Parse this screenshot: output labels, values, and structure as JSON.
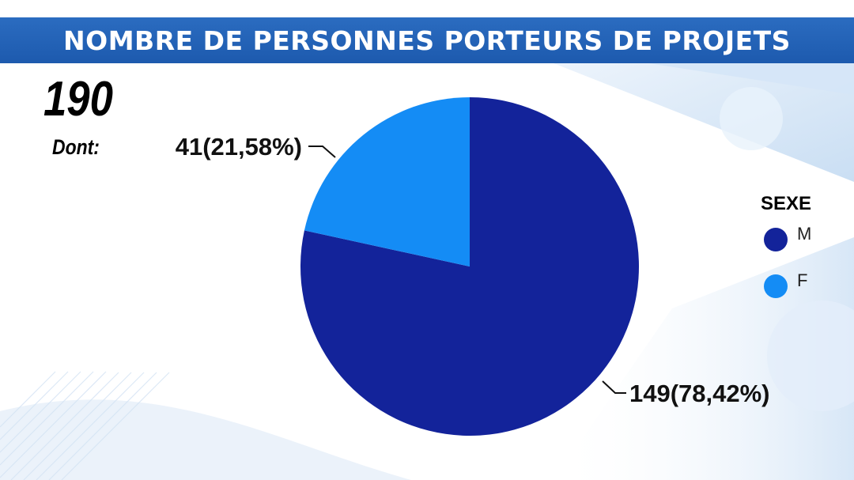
{
  "header": {
    "title": "NOMBRE DE PERSONNES PORTEURS DE PROJETS"
  },
  "summary": {
    "total": "190",
    "dont_label": "Dont:"
  },
  "colors": {
    "title_bar": "#1d5aae",
    "male": "#13239a",
    "female": "#148cf5"
  },
  "legend": {
    "title": "SEXE",
    "items": [
      {
        "label": "M",
        "color": "#13239a"
      },
      {
        "label": "F",
        "color": "#148cf5"
      }
    ]
  },
  "chart_data": {
    "type": "pie",
    "title": "NOMBRE DE PERSONNES PORTEURS DE PROJETS",
    "legend_title": "SEXE",
    "legend_position": "right",
    "slices": [
      {
        "name": "M",
        "value": 149,
        "percent": 78.42,
        "label": "149(78,42%)",
        "color": "#13239a"
      },
      {
        "name": "F",
        "value": 41,
        "percent": 21.58,
        "label": "41(21,58%)",
        "color": "#148cf5"
      }
    ]
  }
}
